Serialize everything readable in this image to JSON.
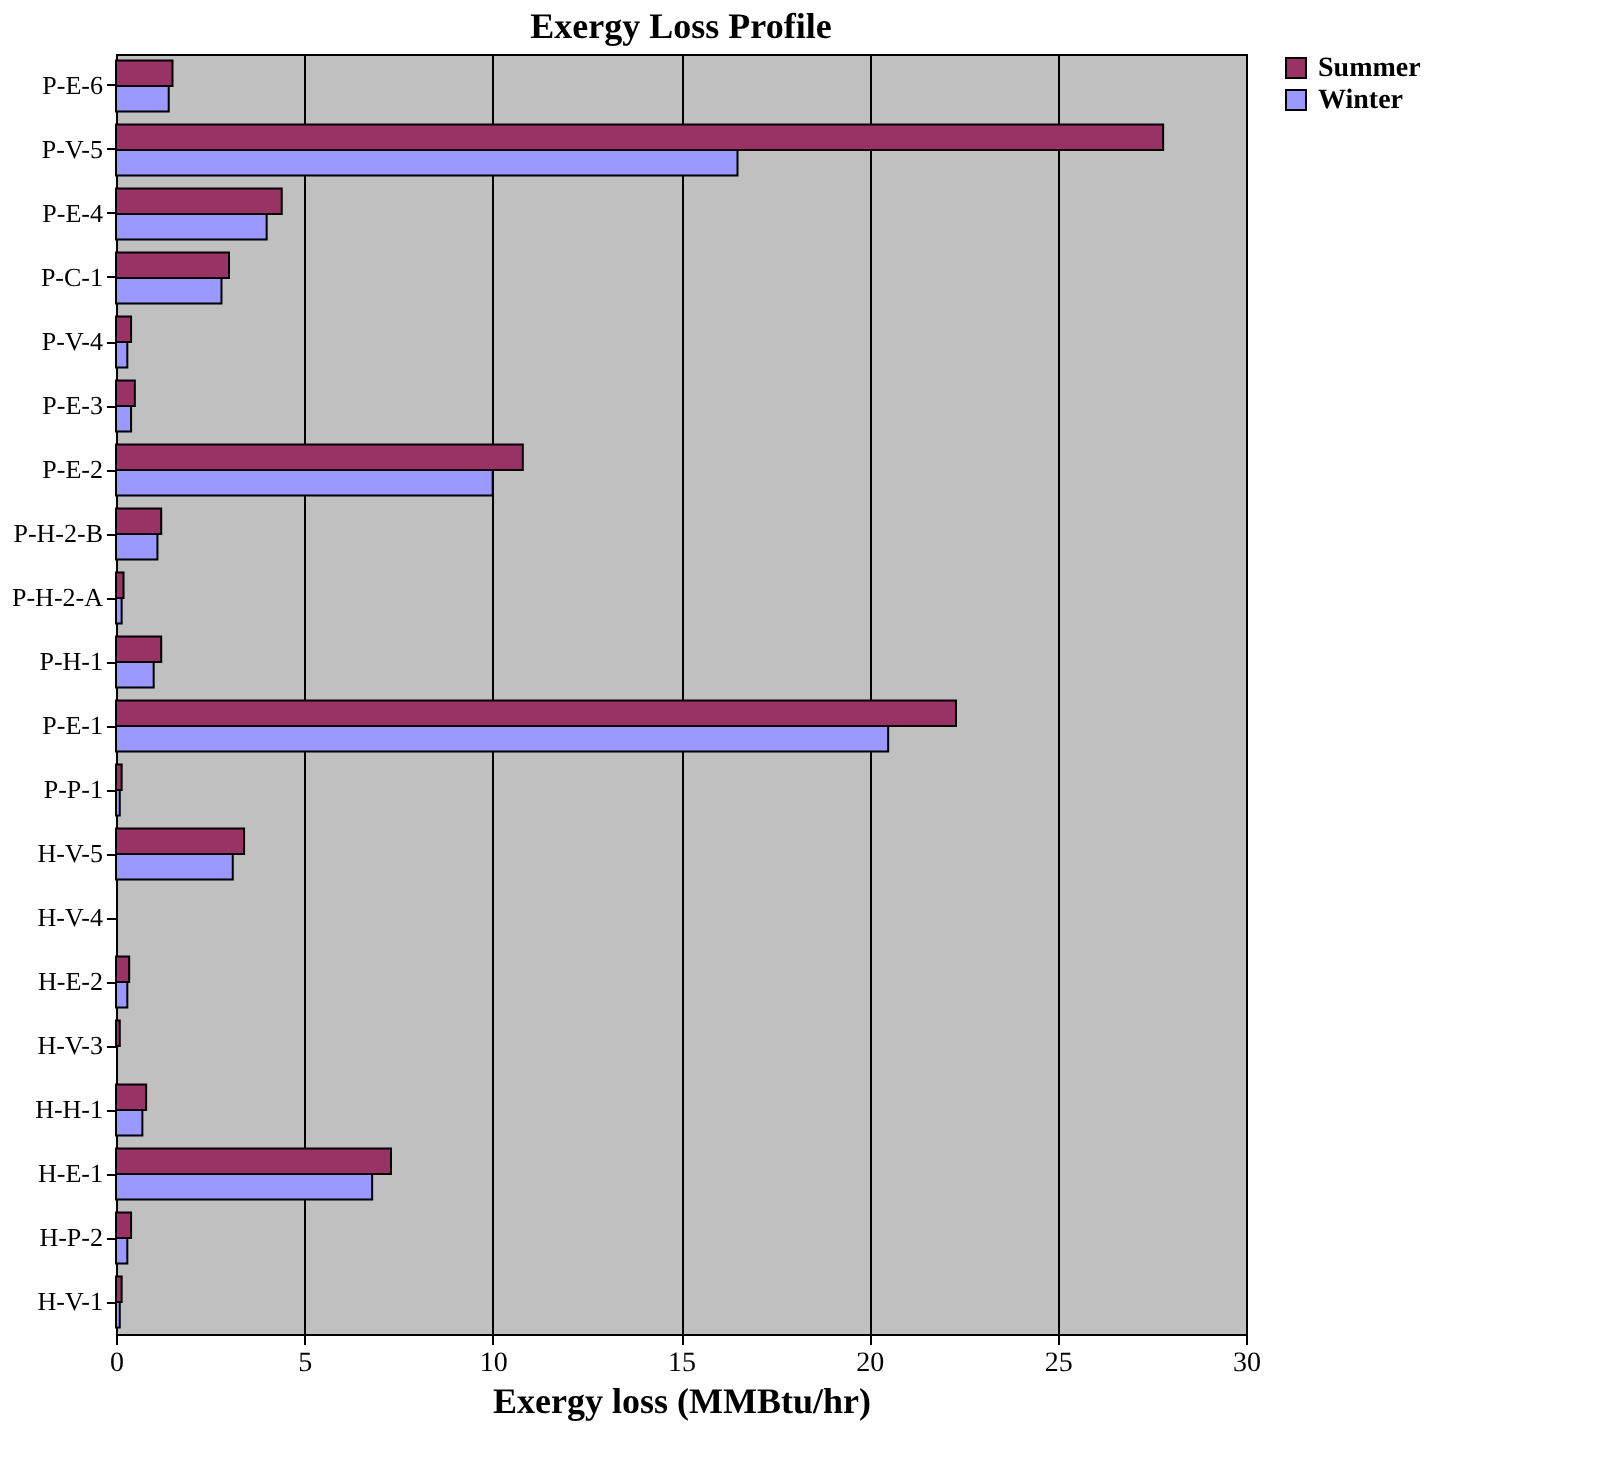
{
  "chart_data": {
    "type": "bar",
    "orientation": "horizontal",
    "title": "Exergy Loss Profile",
    "xlabel": "Exergy loss (MMBtu/hr)",
    "categories": [
      "P-E-6",
      "P-V-5",
      "P-E-4",
      "P-C-1",
      "P-V-4",
      "P-E-3",
      "P-E-2",
      "P-H-2-B",
      "P-H-2-A",
      "P-H-1",
      "P-E-1",
      "P-P-1",
      "H-V-5",
      "H-V-4",
      "H-E-2",
      "H-V-3",
      "H-H-1",
      "H-E-1",
      "H-P-2",
      "H-V-1"
    ],
    "series": [
      {
        "name": "Summer",
        "color": "#993366",
        "values": [
          1.5,
          27.8,
          4.4,
          3.0,
          0.4,
          0.5,
          10.8,
          1.2,
          0.2,
          1.2,
          22.3,
          0.15,
          3.4,
          null,
          0.35,
          0.1,
          0.8,
          7.3,
          0.4,
          0.15
        ]
      },
      {
        "name": "Winter",
        "color": "#9999ff",
        "values": [
          1.4,
          16.5,
          4.0,
          2.8,
          0.3,
          0.4,
          10.0,
          1.1,
          0.15,
          1.0,
          20.5,
          0.1,
          3.1,
          null,
          0.3,
          null,
          0.7,
          6.8,
          0.3,
          0.1
        ]
      }
    ],
    "xlim": [
      0,
      30
    ],
    "xticks": [
      0,
      5,
      10,
      15,
      20,
      25,
      30
    ],
    "grid": "x",
    "legend": "right"
  }
}
